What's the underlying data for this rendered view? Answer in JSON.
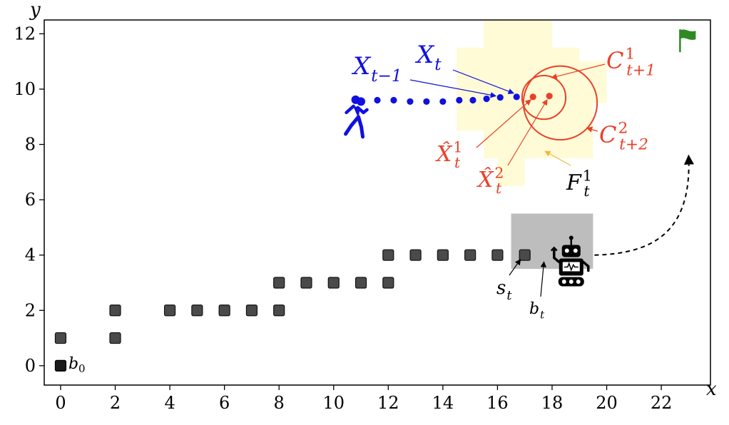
{
  "chart_data": {
    "type": "scatter",
    "xlabel": "x",
    "ylabel": "y",
    "xlim": [
      -0.6,
      23.8
    ],
    "ylim": [
      -0.7,
      12.5
    ],
    "xticks": [
      0,
      2,
      4,
      6,
      8,
      10,
      12,
      14,
      16,
      18,
      20,
      22
    ],
    "yticks": [
      0,
      2,
      4,
      6,
      8,
      10,
      12
    ],
    "grid": false,
    "colors": {
      "robot_path": "#4a4a4a",
      "start": "#1a1a1a",
      "human": "#1010e0",
      "prediction": "#e8412a",
      "footprint": "#fffbd6",
      "box": "#bdbdbd",
      "goal_flag": "#2e8b22",
      "footprint_arrow": "#f0b840"
    },
    "start_node": {
      "x": 0,
      "y": 0,
      "label": "b",
      "sub": "0"
    },
    "robot_path": [
      {
        "x": 0,
        "y": 1
      },
      {
        "x": 2,
        "y": 1
      },
      {
        "x": 2,
        "y": 2
      },
      {
        "x": 4,
        "y": 2
      },
      {
        "x": 5,
        "y": 2
      },
      {
        "x": 6,
        "y": 2
      },
      {
        "x": 7,
        "y": 2
      },
      {
        "x": 8,
        "y": 2
      },
      {
        "x": 8,
        "y": 3
      },
      {
        "x": 9,
        "y": 3
      },
      {
        "x": 10,
        "y": 3
      },
      {
        "x": 11,
        "y": 3
      },
      {
        "x": 12,
        "y": 3
      },
      {
        "x": 12,
        "y": 4
      },
      {
        "x": 13,
        "y": 4
      },
      {
        "x": 14,
        "y": 4
      },
      {
        "x": 15,
        "y": 4
      },
      {
        "x": 16,
        "y": 4
      },
      {
        "x": 17,
        "y": 4
      }
    ],
    "human_trajectory": [
      {
        "x": 11.0,
        "y": 9.55
      },
      {
        "x": 11.6,
        "y": 9.6
      },
      {
        "x": 12.2,
        "y": 9.6
      },
      {
        "x": 12.8,
        "y": 9.55
      },
      {
        "x": 13.4,
        "y": 9.55
      },
      {
        "x": 14.0,
        "y": 9.55
      },
      {
        "x": 14.6,
        "y": 9.6
      },
      {
        "x": 15.1,
        "y": 9.6
      },
      {
        "x": 15.6,
        "y": 9.65
      },
      {
        "x": 16.1,
        "y": 9.7
      },
      {
        "x": 16.7,
        "y": 9.72
      }
    ],
    "predictions": [
      {
        "x": 17.3,
        "y": 9.72
      },
      {
        "x": 17.9,
        "y": 9.75
      }
    ],
    "prediction_circles": [
      {
        "cx": 17.7,
        "cy": 9.7,
        "r": 0.8
      },
      {
        "cx": 18.3,
        "cy": 9.5,
        "r": 1.35
      }
    ],
    "footprint": [
      [
        15.5,
        12.5
      ],
      [
        18.0,
        12.5
      ],
      [
        18.0,
        11.5
      ],
      [
        19.0,
        11.5
      ],
      [
        19.0,
        11.0
      ],
      [
        20.0,
        11.0
      ],
      [
        20.0,
        9.5
      ],
      [
        19.5,
        9.5
      ],
      [
        19.5,
        7.5
      ],
      [
        17.0,
        7.5
      ],
      [
        17.0,
        6.5
      ],
      [
        16.0,
        6.5
      ],
      [
        16.0,
        7.5
      ],
      [
        15.5,
        7.5
      ],
      [
        15.5,
        8.5
      ],
      [
        14.5,
        8.5
      ],
      [
        14.5,
        11.5
      ],
      [
        15.5,
        11.5
      ]
    ],
    "search_box": {
      "x0": 16.5,
      "x1": 19.5,
      "y0": 3.5,
      "y1": 5.5
    },
    "robot_position": {
      "x": 18.7,
      "y": 3.8
    },
    "human_position": {
      "x": 10.7,
      "y": 9.1
    },
    "goal_position": {
      "x": 23.0,
      "y": 11.8
    },
    "planned_arc": {
      "from": {
        "x": 19.5,
        "y": 4.0
      },
      "to": {
        "x": 23.0,
        "y": 7.6
      }
    },
    "annotations": {
      "X_t_minus_1": {
        "base": "X",
        "sub": "t−1"
      },
      "X_t": {
        "base": "X",
        "sub": "t"
      },
      "C_t_plus_1": {
        "base": "C",
        "sup": "1",
        "sub": "t+1"
      },
      "C_t_plus_2": {
        "base": "C",
        "sup": "2",
        "sub": "t+2"
      },
      "Xhat_t_1": {
        "base": "X̂",
        "sup": "1",
        "sub": "t"
      },
      "Xhat_t_2": {
        "base": "X̂",
        "sup": "2",
        "sub": "t"
      },
      "F_t_1": {
        "base": "F",
        "sup": "1",
        "sub": "t"
      },
      "s_t": {
        "base": "s",
        "sub": "t"
      },
      "b_t": {
        "base": "b",
        "sub": "t"
      }
    },
    "icons": [
      "walking-person-icon",
      "robot-icon",
      "goal-flag-icon"
    ]
  }
}
